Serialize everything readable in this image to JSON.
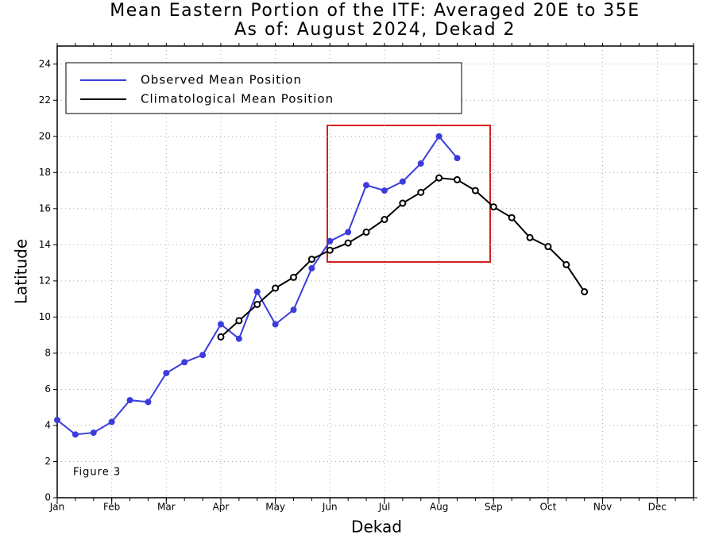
{
  "chart_data": {
    "type": "line",
    "title": "Mean Eastern Portion of the ITF: Averaged 20E to 35E",
    "subtitle": "As of: August 2024, Dekad 2",
    "xlabel": "Dekad",
    "ylabel": "Latitude",
    "annotation": "Figure 3",
    "x": [
      0,
      1,
      2,
      3,
      4,
      5,
      6,
      7,
      8,
      9,
      10,
      11,
      12,
      13,
      14,
      15,
      16,
      17,
      18,
      19,
      20,
      21,
      22,
      23,
      24,
      25,
      26,
      27,
      28,
      29
    ],
    "series": [
      {
        "name": "Observed Mean Position",
        "color": "#3c3cdc",
        "values": [
          4.3,
          3.5,
          3.6,
          4.2,
          5.4,
          5.3,
          6.9,
          7.5,
          7.9,
          9.6,
          8.8,
          11.4,
          9.6,
          10.4,
          12.7,
          14.2,
          14.7,
          17.3,
          17.0,
          17.5,
          18.5,
          20.0,
          18.8,
          null,
          null,
          null,
          null,
          null,
          null,
          null
        ]
      },
      {
        "name": "Climatological Mean Position",
        "color": "#000000",
        "values": [
          null,
          null,
          null,
          null,
          null,
          null,
          null,
          null,
          null,
          8.9,
          9.8,
          10.7,
          11.6,
          12.2,
          13.2,
          13.7,
          14.1,
          14.7,
          15.4,
          16.3,
          16.9,
          17.7,
          17.6,
          17.0,
          16.1,
          15.5,
          14.4,
          13.9,
          12.9,
          11.4
        ]
      }
    ],
    "xlim": [
      0,
      35
    ],
    "xticks": [
      {
        "value": 0,
        "label": "Jan"
      },
      {
        "value": 3,
        "label": "Feb"
      },
      {
        "value": 6,
        "label": "Mar"
      },
      {
        "value": 9,
        "label": "Apr"
      },
      {
        "value": 12,
        "label": "May"
      },
      {
        "value": 15,
        "label": "Jun"
      },
      {
        "value": 18,
        "label": "Jul"
      },
      {
        "value": 21,
        "label": "Aug"
      },
      {
        "value": 24,
        "label": "Sep"
      },
      {
        "value": 27,
        "label": "Oct"
      },
      {
        "value": 30,
        "label": "Nov"
      },
      {
        "value": 33,
        "label": "Dec"
      }
    ],
    "ylim": [
      0,
      25
    ],
    "yticks": [
      0,
      2,
      4,
      6,
      8,
      10,
      12,
      14,
      16,
      18,
      20,
      22,
      24
    ],
    "grid": true,
    "legend": "upper left"
  }
}
